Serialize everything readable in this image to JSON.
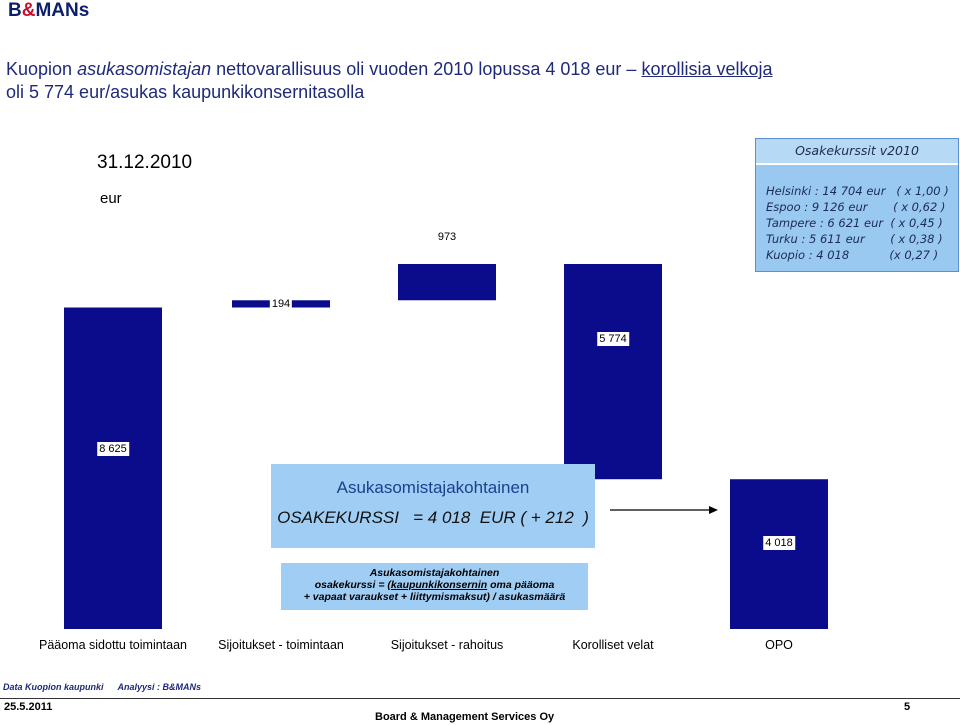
{
  "logo": {
    "part1": "B",
    "amp": "&",
    "part2": "MANs"
  },
  "headline": {
    "l1a": "Kuopion ",
    "l1b": "asukasomistajan",
    "l1c": " nettovarallisuus oli vuoden 2010 lopussa 4 018 eur – ",
    "l1d": "korollisia velkoja",
    "l2": "oli 5 774 eur/asukas kaupunkikonsernitasolla"
  },
  "chart_header": {
    "date": "31.12.2010",
    "unit": "eur"
  },
  "chart_data": {
    "type": "bar",
    "subtype": "waterfall",
    "categories": [
      "Pääoma sidottu toimintaan",
      "Sijoitukset - toimintaan",
      "Sijoitukset - rahoitus",
      "Korolliset velat",
      "OPO"
    ],
    "values": [
      8625,
      194,
      973,
      -5774,
      4018
    ],
    "labels": [
      "8 625",
      "194",
      "973",
      "5 774",
      "4 018"
    ],
    "colors": {
      "bar": "#0b0c8c",
      "box": "#9fcdf3",
      "text": "#1f2a7a"
    }
  },
  "info_box": {
    "title": "Osakekurssit v2010",
    "rows": [
      "Helsinki : 14 704 eur   ( x 1,00 )",
      "Espoo : 9 126 eur       ( x 0,62 )",
      "Tampere : 6 621 eur  ( x 0,45 )",
      "Turku : 5 611 eur       ( x 0,38 )",
      "Kuopio : 4 018           (x 0,27 )"
    ]
  },
  "mid_box": {
    "line1": "Asukasomistajakohtainen",
    "line2": "OSAKEKURSSI   = 4 018  EUR ( + 212  )"
  },
  "formula_box": {
    "line1": "Asukasomistajakohtainen",
    "line2a": "osakekurssi = (",
    "line2b": "kaupunkikonsernin",
    "line2c": " oma pääoma",
    "line3": "+ vapaat varaukset + liittymismaksut) / asukasmäärä"
  },
  "footer": {
    "source": "Data Kuopion kaupunki",
    "analysis": "Analyysi : B&MANs",
    "date": "25.5.2011",
    "company": "Board & Management Services Oy",
    "page": "5"
  }
}
